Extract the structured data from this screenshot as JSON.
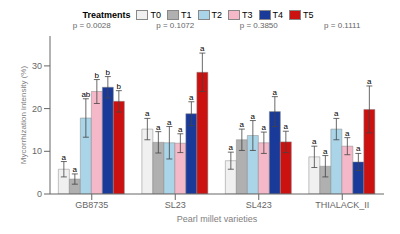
{
  "chart_data": {
    "type": "bar",
    "categories": [
      "GB8735",
      "SL23",
      "SL423",
      "THIALACK_II"
    ],
    "series": [
      {
        "name": "T0",
        "color": "#f0f0f0",
        "values": [
          5.8,
          15.2,
          7.8,
          8.7
        ],
        "errors": [
          1.8,
          2.5,
          2.0,
          2.5
        ],
        "sig_labels": [
          "a",
          "a",
          "a",
          "a"
        ]
      },
      {
        "name": "T1",
        "color": "#b0b0b0",
        "values": [
          3.5,
          12.1,
          12.7,
          6.5
        ],
        "errors": [
          1.2,
          2.5,
          2.5,
          2.5
        ],
        "sig_labels": [
          "a",
          "a",
          "a",
          "a"
        ]
      },
      {
        "name": "T2",
        "color": "#aad4e8",
        "values": [
          17.8,
          12.0,
          13.7,
          15.2
        ],
        "errors": [
          4.5,
          3.8,
          3.5,
          2.5
        ],
        "sig_labels": [
          "ab",
          "a",
          "a",
          "a"
        ]
      },
      {
        "name": "T3",
        "color": "#f5b8c8",
        "values": [
          24.0,
          11.9,
          12.0,
          11.2
        ],
        "errors": [
          2.8,
          2.2,
          2.5,
          2.0
        ],
        "sig_labels": [
          "b",
          "a",
          "a",
          "a"
        ]
      },
      {
        "name": "T4",
        "color": "#1a3a9a",
        "values": [
          25.0,
          18.8,
          19.3,
          7.5
        ],
        "errors": [
          2.5,
          2.8,
          3.5,
          2.0
        ],
        "sig_labels": [
          "b",
          "a",
          "a",
          "a"
        ]
      },
      {
        "name": "T5",
        "color": "#cc1111",
        "values": [
          21.7,
          28.5,
          12.2,
          19.8
        ],
        "errors": [
          2.5,
          4.5,
          2.5,
          5.5
        ],
        "sig_labels": [
          "b",
          "a",
          "a",
          "a"
        ]
      }
    ],
    "annotations": [
      "p = 0.0028",
      "p = 0.1072",
      "p = 0.3850",
      "p = 0.1111"
    ],
    "xlabel": "Pearl millet varieties",
    "ylabel": "Mycorrhization intensity (%)",
    "legend_title": "Treatments",
    "ylim": [
      0,
      37
    ],
    "yticks": [
      0,
      10,
      20,
      30
    ],
    "grid": false,
    "legend": "top"
  }
}
